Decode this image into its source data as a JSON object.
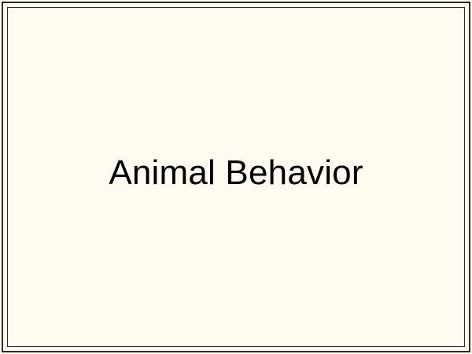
{
  "slide": {
    "title": "Animal Behavior",
    "background_color": "#fffbf0",
    "border_color": "#2b2b2b",
    "text_color": "#000000"
  }
}
